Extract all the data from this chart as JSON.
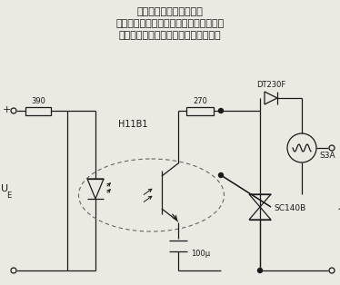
{
  "title_line1": "所示光电耦合器输出侧采",
  "title_line2": "用光敏三极管，当其导通时控制双向晶闸",
  "title_line3": "管导通，从而控制灯亮。反之则灯灭。",
  "label_390": "390",
  "label_270": "270",
  "label_H11B1": "H11B1",
  "label_UE": "U",
  "label_UE_sub": "E",
  "label_DT230F": "DT230F",
  "label_S3A": "S3A",
  "label_SC140B": "SC140B",
  "label_100u": "100μ",
  "label_tilde": "~",
  "bg_color": "#ece9e3",
  "line_color": "#1a1a1a",
  "text_color": "#1a1a1a",
  "fig_width": 3.74,
  "fig_height": 3.14,
  "dpi": 100
}
